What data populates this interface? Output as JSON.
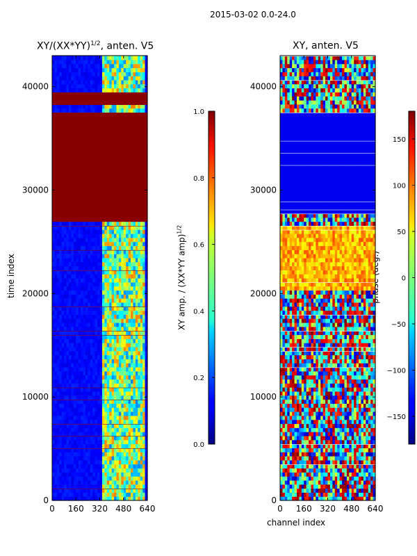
{
  "figure": {
    "suptitle": "2015-03-02 0.0-24.0"
  },
  "chart_data": [
    {
      "type": "heatmap",
      "title": "XY/(XX*YY)",
      "title_exponent": "1/2",
      "title_suffix": ", anten. V5",
      "xlabel": "",
      "ylabel": "time index",
      "xlim": [
        0,
        640
      ],
      "ylim": [
        0,
        43000
      ],
      "xticks": [
        0,
        160,
        320,
        480,
        640
      ],
      "yticks": [
        0,
        10000,
        20000,
        30000,
        40000
      ],
      "colormap": "jet",
      "colorbar": {
        "label": "XY amp. / (XX*YY amp)",
        "label_exponent": "1/2",
        "range": [
          0.0,
          1.0
        ],
        "ticks": [
          "0.0",
          "0.2",
          "0.4",
          "0.6",
          "0.8",
          "1.0"
        ]
      },
      "saturated_time_bands": [
        [
          27000,
          28000
        ],
        [
          28200,
          37500
        ],
        [
          38200,
          39500
        ]
      ],
      "active_channel_range": [
        320,
        640
      ]
    },
    {
      "type": "heatmap",
      "title": "XY, anten. V5",
      "xlabel": "channel index",
      "ylabel": "",
      "xlim": [
        0,
        640
      ],
      "ylim": [
        0,
        43000
      ],
      "xticks": [
        0,
        160,
        320,
        480,
        640
      ],
      "yticks": [
        0,
        10000,
        20000,
        30000,
        40000
      ],
      "colormap": "jet",
      "colorbar": {
        "label": "phase (deg.)",
        "range": [
          -180,
          180
        ],
        "ticks": [
          "−150",
          "−100",
          "−50",
          "0",
          "50",
          "100",
          "150"
        ]
      },
      "flat_time_bands": [
        [
          27700,
          37500
        ],
        [
          28000,
          37000
        ]
      ],
      "warm_phase_band": [
        20500,
        26500
      ]
    }
  ]
}
